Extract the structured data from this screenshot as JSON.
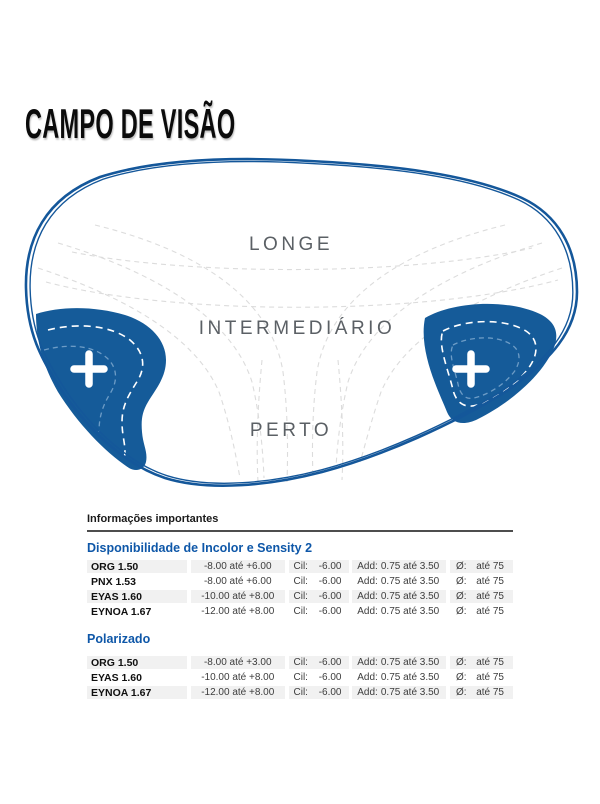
{
  "title": "CAMPO DE VISÃO",
  "diagram": {
    "zone_far": "LONGE",
    "zone_intermediate": "INTERMEDIÁRIO",
    "zone_near": "PERTO",
    "plus_symbol": "+",
    "colors": {
      "lens_blue": "#155b99",
      "contour_gray": "#dcdcdc",
      "zone_label_gray": "#5b6065"
    }
  },
  "table": {
    "header": "Informações importantes",
    "accent_blue": "#0e57a8",
    "col_labels": {
      "cil": "Cil:",
      "add": "Add:",
      "diameter": "Ø:"
    },
    "sections": [
      {
        "title": "Disponibilidade de Incolor e Sensity 2",
        "rows": [
          {
            "name": "ORG 1.50",
            "range": "-8.00 até +6.00",
            "cil": "-6.00",
            "add": "0.75 até 3.50",
            "diameter": "até 75"
          },
          {
            "name": "PNX 1.53",
            "range": "-8.00 até +6.00",
            "cil": "-6.00",
            "add": "0.75 até 3.50",
            "diameter": "até 75"
          },
          {
            "name": "EYAS 1.60",
            "range": "-10.00 até +8.00",
            "cil": "-6.00",
            "add": "0.75 até 3.50",
            "diameter": "até 75"
          },
          {
            "name": "EYNOA 1.67",
            "range": "-12.00 até +8.00",
            "cil": "-6.00",
            "add": "0.75 até 3.50",
            "diameter": "até 75"
          }
        ]
      },
      {
        "title": "Polarizado",
        "rows": [
          {
            "name": "ORG 1.50",
            "range": "-8.00 até +3.00",
            "cil": "-6.00",
            "add": "0.75 até 3.50",
            "diameter": "até 75"
          },
          {
            "name": "EYAS 1.60",
            "range": "-10.00 até +8.00",
            "cil": "-6.00",
            "add": "0.75 até 3.50",
            "diameter": "até 75"
          },
          {
            "name": "EYNOA 1.67",
            "range": "-12.00 até +8.00",
            "cil": "-6.00",
            "add": "0.75 até 3.50",
            "diameter": "até 75"
          }
        ]
      }
    ]
  }
}
